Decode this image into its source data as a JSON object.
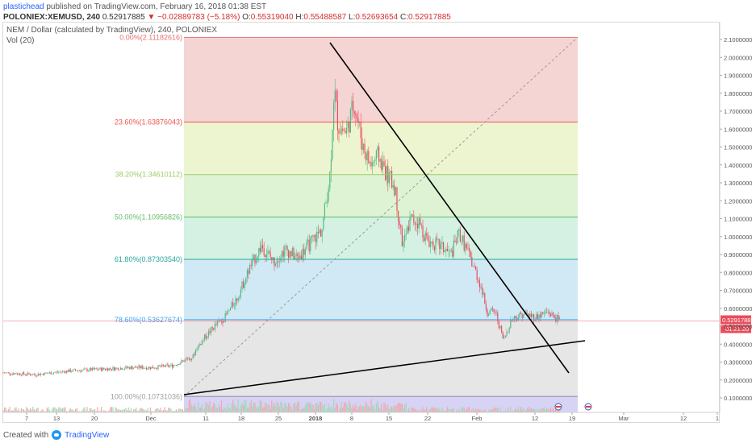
{
  "header": {
    "author": "plastichead",
    "published_text": "published on",
    "site": "TradingView.com,",
    "date": "February 16, 2018 01:38 EST",
    "ticker": "POLONIEX:XEMUSD, 240",
    "last": "0.52917885",
    "arrow": "▼",
    "change": "−0.02889783 (−5.18%)",
    "o_label": "O:",
    "o": "0.55319040",
    "h_label": "H:",
    "h": "0.55488587",
    "l_label": "L:",
    "l": "0.52693654",
    "c_label": "C:",
    "c": "0.52917885"
  },
  "symbol_title": "NEM / Dollar (calculated by TradingView), 240, POLONIEX",
  "volume_label": "Vol (20)",
  "footer": {
    "created_with": "Created with",
    "brand": "TradingView"
  },
  "colors": {
    "up": "#53b987",
    "down": "#eb4d5c",
    "price_line": "#eb4d5c",
    "fib_levels": [
      "#e57373",
      "#ef5350",
      "#9ccc65",
      "#66bb6a",
      "#26a69a",
      "#42a5f5",
      "#9e9e9e"
    ],
    "fib_bands": [
      "#f3c9c9",
      "#e9f3c4",
      "#d4f0c9",
      "#c9eedd",
      "#c6e4f2",
      "#e0e0e0"
    ],
    "volume_band": "#c8c4f0"
  },
  "chart_data": {
    "type": "candlestick",
    "y_axis": {
      "ticks": [
        "2.10000000",
        "2.00000000",
        "1.90000000",
        "1.80000000",
        "1.70000000",
        "1.60000000",
        "1.50000000",
        "1.40000000",
        "1.30000000",
        "1.20000000",
        "1.10000000",
        "1.00000000",
        "0.90000000",
        "0.80000000",
        "0.70000000",
        "0.60000000",
        "0.50000000",
        "0.40000000",
        "0.30000000",
        "0.20000000",
        "0.10000000"
      ],
      "range": [
        0.0,
        2.15
      ]
    },
    "x_axis": {
      "ticks": [
        "7",
        "13",
        "20",
        "Dec",
        "11",
        "18",
        "25",
        "2018",
        "8",
        "15",
        "22",
        "Feb",
        "12",
        "19",
        "Mar",
        "12",
        "1"
      ]
    },
    "current_price": {
      "value": 0.52917885,
      "label": "0.52917885",
      "countdown": "01:21:20"
    },
    "fib_retracement": [
      {
        "ratio": "0.00%",
        "price": 2.11182616,
        "label": "0.00%(2.11182616)"
      },
      {
        "ratio": "23.60%",
        "price": 1.63876043,
        "label": "23.60%(1.63876043)"
      },
      {
        "ratio": "38.20%",
        "price": 1.34610112,
        "label": "38.20%(1.34610112)"
      },
      {
        "ratio": "50.00%",
        "price": 1.10956826,
        "label": "50.00%(1.10956826)"
      },
      {
        "ratio": "61.80%",
        "price": 0.8730354,
        "label": "61.80%(0.87303540)"
      },
      {
        "ratio": "78.60%",
        "price": 0.53627674,
        "label": "78.60%(0.53627674)"
      },
      {
        "ratio": "100.00%",
        "price": 0.10731036,
        "label": "100.00%(0.10731036)"
      }
    ],
    "approx_close_path": [
      [
        0,
        0.24
      ],
      [
        40,
        0.23
      ],
      [
        80,
        0.25
      ],
      [
        120,
        0.26
      ],
      [
        160,
        0.27
      ],
      [
        185,
        0.27
      ],
      [
        210,
        0.28
      ],
      [
        235,
        0.33
      ],
      [
        240,
        0.38
      ],
      [
        250,
        0.44
      ],
      [
        262,
        0.5
      ],
      [
        275,
        0.55
      ],
      [
        290,
        0.66
      ],
      [
        305,
        0.82
      ],
      [
        320,
        0.95
      ],
      [
        335,
        0.86
      ],
      [
        350,
        0.93
      ],
      [
        365,
        0.88
      ],
      [
        380,
        0.96
      ],
      [
        395,
        1.04
      ],
      [
        405,
        1.35
      ],
      [
        410,
        1.83
      ],
      [
        415,
        1.62
      ],
      [
        425,
        1.58
      ],
      [
        435,
        1.75
      ],
      [
        445,
        1.52
      ],
      [
        455,
        1.4
      ],
      [
        465,
        1.45
      ],
      [
        475,
        1.35
      ],
      [
        485,
        1.28
      ],
      [
        495,
        0.95
      ],
      [
        505,
        1.1
      ],
      [
        515,
        1.08
      ],
      [
        525,
        0.98
      ],
      [
        540,
        0.95
      ],
      [
        555,
        0.9
      ],
      [
        565,
        1.02
      ],
      [
        575,
        0.92
      ],
      [
        590,
        0.75
      ],
      [
        600,
        0.58
      ],
      [
        610,
        0.58
      ],
      [
        620,
        0.42
      ],
      [
        630,
        0.54
      ],
      [
        645,
        0.57
      ],
      [
        660,
        0.55
      ],
      [
        675,
        0.58
      ],
      [
        690,
        0.53
      ]
    ],
    "trendlines": [
      {
        "from": [
          "Jan 4",
          2.1
        ],
        "to": [
          "Feb 18",
          0.26
        ],
        "label": ""
      },
      {
        "from": [
          "Dec 1",
          0.07
        ],
        "to": [
          "Feb 20",
          0.41
        ],
        "label": ""
      }
    ]
  }
}
